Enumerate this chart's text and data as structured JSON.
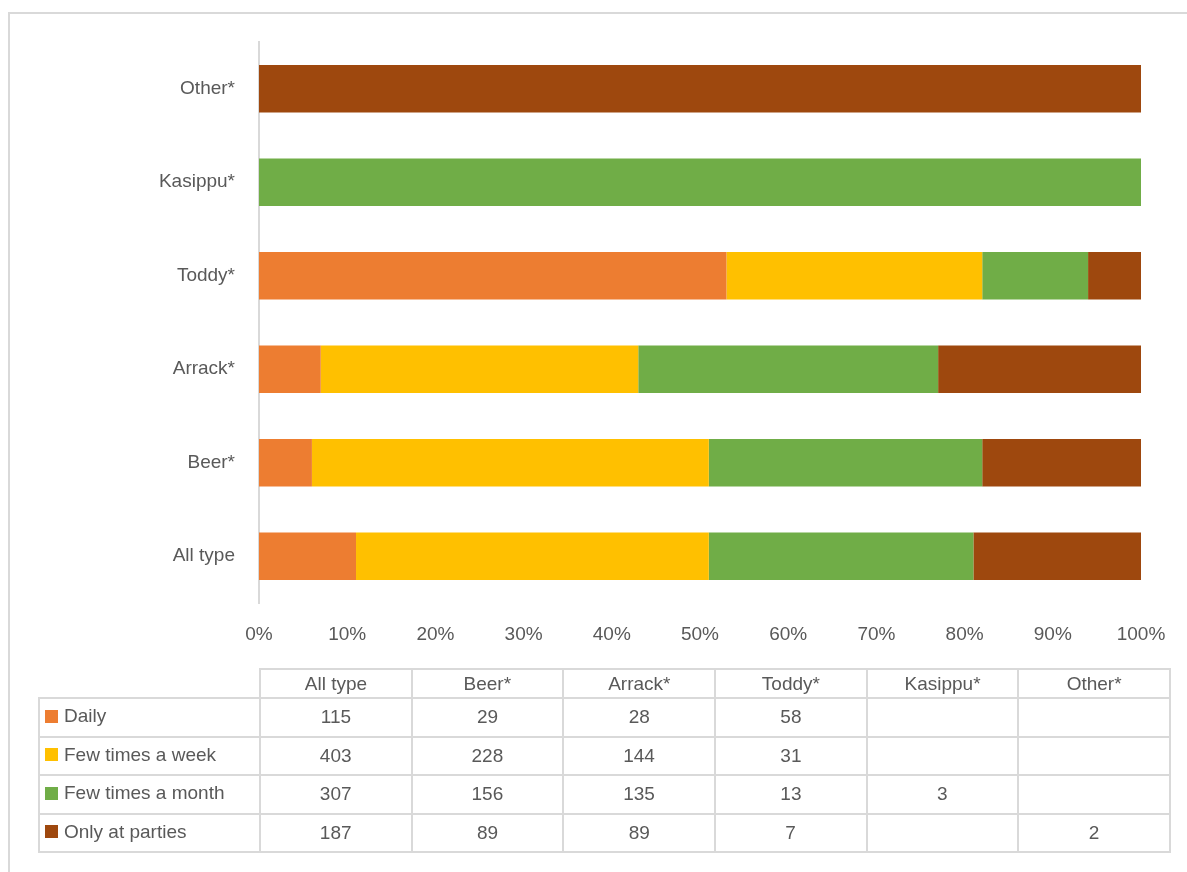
{
  "chart_data": [
    {
      "type": "bar",
      "orientation": "horizontal",
      "stacked": true,
      "categories": [
        "Other*",
        "Kasippu*",
        "Toddy*",
        "Arrack*",
        "Beer*",
        "All type"
      ],
      "series": [
        {
          "name": "Daily",
          "color": "#ed7d31",
          "values": [
            null,
            null,
            53,
            7,
            6,
            11
          ]
        },
        {
          "name": "Few times a week",
          "color": "#ffc000",
          "values": [
            null,
            null,
            29,
            36,
            45,
            40
          ]
        },
        {
          "name": "Few times a month",
          "color": "#70ad47",
          "values": [
            null,
            100,
            12,
            34,
            31,
            30
          ]
        },
        {
          "name": "Only at parties",
          "color": "#9e480e",
          "values": [
            100,
            null,
            6,
            23,
            18,
            19
          ]
        }
      ],
      "xlim": [
        0,
        100
      ],
      "xticks": [
        {
          "value": 0,
          "label": "0%"
        },
        {
          "value": 10,
          "label": "10%"
        },
        {
          "value": 20,
          "label": "20%"
        },
        {
          "value": 30,
          "label": "30%"
        },
        {
          "value": 40,
          "label": "40%"
        },
        {
          "value": 50,
          "label": "50%"
        },
        {
          "value": 60,
          "label": "60%"
        },
        {
          "value": 70,
          "label": "70%"
        },
        {
          "value": 80,
          "label": "80%"
        },
        {
          "value": 90,
          "label": "90%"
        },
        {
          "value": 100,
          "label": "100%"
        }
      ],
      "legend": "bottom"
    },
    {
      "type": "other",
      "categories": [
        "All type",
        "Beer*",
        "Arrack*",
        "Toddy*",
        "Kasippu*",
        "Other*"
      ],
      "series": [
        {
          "values": [
            115,
            29,
            28,
            58,
            null,
            null
          ]
        },
        {
          "values": [
            403,
            228,
            144,
            31,
            null,
            null
          ]
        },
        {
          "values": [
            307,
            156,
            135,
            13,
            3,
            null
          ]
        },
        {
          "values": [
            187,
            89,
            89,
            7,
            null,
            2
          ]
        }
      ],
      "data_labels": true
    }
  ]
}
